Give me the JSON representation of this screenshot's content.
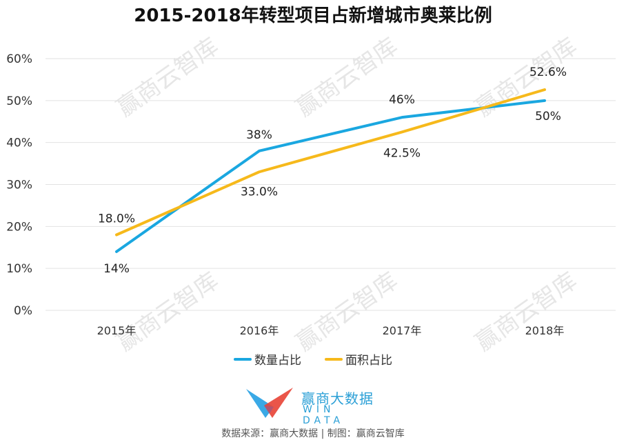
{
  "title": "2015-2018年转型项目占新增城市奥莱比例",
  "chart_data": {
    "type": "line",
    "title": "2015-2018年转型项目占新增城市奥莱比例",
    "categories": [
      "2015年",
      "2016年",
      "2017年",
      "2018年"
    ],
    "series": [
      {
        "name": "数量占比",
        "color": "#1aa7e0",
        "values": [
          14,
          38,
          46,
          50
        ],
        "labels": [
          "14%",
          "38%",
          "46%",
          "50%"
        ]
      },
      {
        "name": "面积占比",
        "color": "#f6b91b",
        "values": [
          18.0,
          33.0,
          42.5,
          52.6
        ],
        "labels": [
          "18.0%",
          "33.0%",
          "42.5%",
          "52.6%"
        ]
      }
    ],
    "yticks": [
      "0%",
      "10%",
      "20%",
      "30%",
      "40%",
      "50%",
      "60%"
    ],
    "ylim": [
      0,
      60
    ],
    "xlabel": "",
    "ylabel": "",
    "grid": true,
    "legend_position": "bottom"
  },
  "legend": [
    {
      "label": "数量占比",
      "color": "#1aa7e0"
    },
    {
      "label": "面积占比",
      "color": "#f6b91b"
    }
  ],
  "logo": {
    "cn": "赢商大数据",
    "en": "WIN DATA"
  },
  "watermark": "赢商云智库",
  "source": "数据来源：赢商大数据 | 制图：赢商云智库"
}
